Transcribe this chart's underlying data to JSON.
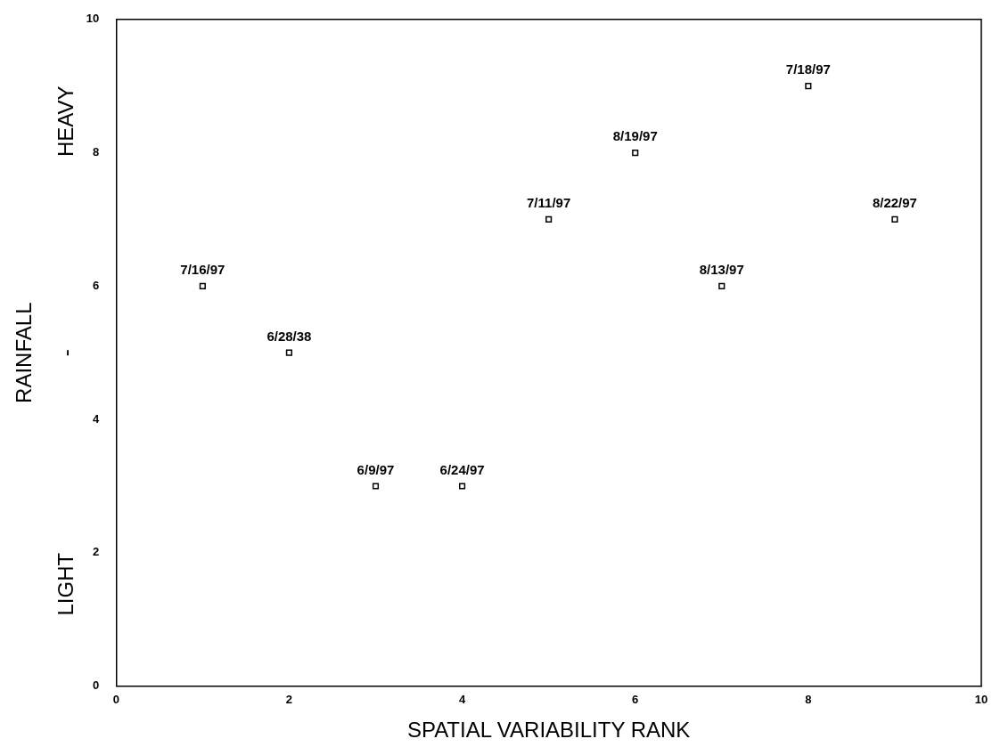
{
  "chart_data": {
    "type": "scatter",
    "xlabel": "SPATIAL VARIABILITY RANK",
    "ylabel": "RAINFALL",
    "x": [
      1,
      2,
      3,
      4,
      5,
      6,
      7,
      8,
      9
    ],
    "values": [
      6,
      5,
      3,
      3,
      7,
      8,
      6,
      9,
      7
    ],
    "color": "#000000",
    "marker": "square",
    "xlim": [
      0,
      10
    ],
    "xticks": [
      0,
      2,
      4,
      6,
      8,
      10
    ],
    "ylim": [
      0,
      10
    ],
    "yticks": [
      0,
      2,
      4,
      6,
      8,
      10
    ],
    "grid": false,
    "legend": false,
    "annotations": [
      "LIGHT - HEAVY",
      {
        "text": "7/16/97",
        "x": 1,
        "y": 6
      },
      {
        "text": "6/28/38",
        "x": 2,
        "y": 5
      },
      {
        "text": "6/9/97",
        "x": 3,
        "y": 3
      },
      {
        "text": "6/24/97",
        "x": 4,
        "y": 3
      },
      {
        "text": "7/11/97",
        "x": 5,
        "y": 7
      },
      {
        "text": "8/19/97",
        "x": 6,
        "y": 8
      },
      {
        "text": "8/13/97",
        "x": 7,
        "y": 6
      },
      {
        "text": "7/18/97",
        "x": 8,
        "y": 9
      },
      {
        "text": "8/22/97",
        "x": 9,
        "y": 7
      }
    ]
  }
}
